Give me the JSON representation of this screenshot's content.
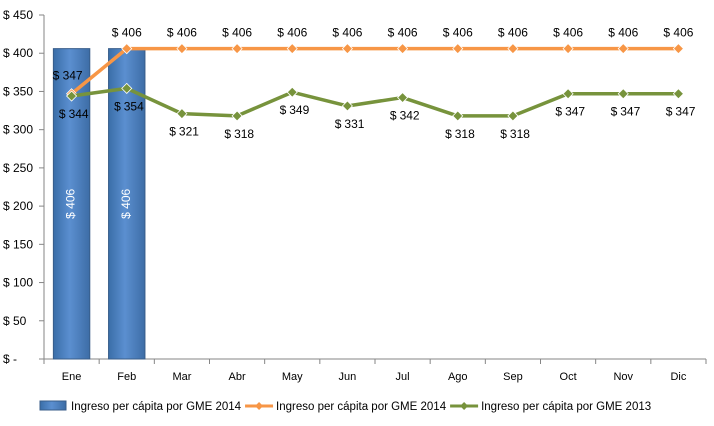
{
  "chart_data": {
    "type": "bar",
    "categories": [
      "Ene",
      "Feb",
      "Mar",
      "Abr",
      "May",
      "Jun",
      "Jul",
      "Ago",
      "Sep",
      "Oct",
      "Nov",
      "Dic"
    ],
    "y_ticks": [
      "$ -",
      "$ 50",
      "$ 100",
      "$ 150",
      "$ 200",
      "$ 250",
      "$ 300",
      "$ 350",
      "$ 400",
      "$ 450"
    ],
    "ylim": [
      0,
      450
    ],
    "series": [
      {
        "name": "Ingreso per cápita por GME 2014",
        "kind": "bar",
        "color": "#4f81bd",
        "values": [
          406,
          406,
          null,
          null,
          null,
          null,
          null,
          null,
          null,
          null,
          null,
          null
        ],
        "labels": [
          "$ 406",
          "$ 406",
          null,
          null,
          null,
          null,
          null,
          null,
          null,
          null,
          null,
          null
        ]
      },
      {
        "name": "Ingreso per cápita por GME 2014",
        "kind": "line",
        "color": "#f79646",
        "values": [
          347,
          406,
          406,
          406,
          406,
          406,
          406,
          406,
          406,
          406,
          406,
          406
        ],
        "labels": [
          "$ 347",
          "$ 406",
          "$ 406",
          "$ 406",
          "$ 406",
          "$ 406",
          "$ 406",
          "$ 406",
          "$ 406",
          "$ 406",
          "$ 406",
          "$ 406"
        ]
      },
      {
        "name": "Ingreso per cápita por GME 2013",
        "kind": "line",
        "color": "#77933c",
        "values": [
          344,
          354,
          321,
          318,
          349,
          331,
          342,
          318,
          318,
          347,
          347,
          347
        ],
        "labels": [
          "344",
          "354",
          "321",
          "318",
          "349",
          "331",
          "342",
          "318",
          "318",
          "347",
          "347",
          "347"
        ]
      }
    ],
    "grid": false,
    "legend_position": "bottom"
  }
}
